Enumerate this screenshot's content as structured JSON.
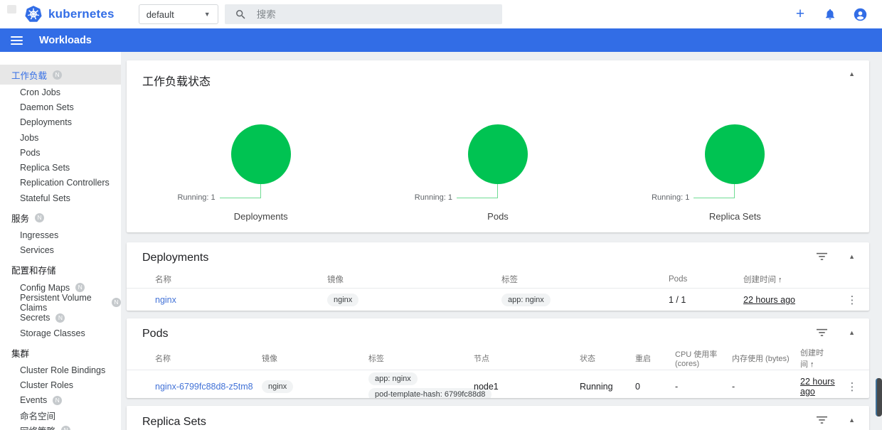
{
  "header": {
    "brand": "kubernetes",
    "namespace": "default",
    "search_placeholder": "搜索"
  },
  "toolbar": {
    "title": "Workloads"
  },
  "sidebar": {
    "groups": [
      {
        "label": "工作负载",
        "badge": "N",
        "active": true,
        "children": [
          {
            "label": "Cron Jobs"
          },
          {
            "label": "Daemon Sets"
          },
          {
            "label": "Deployments"
          },
          {
            "label": "Jobs"
          },
          {
            "label": "Pods"
          },
          {
            "label": "Replica Sets"
          },
          {
            "label": "Replication Controllers"
          },
          {
            "label": "Stateful Sets"
          }
        ]
      },
      {
        "label": "服务",
        "badge": "N",
        "children": [
          {
            "label": "Ingresses"
          },
          {
            "label": "Services"
          }
        ]
      },
      {
        "label": "配置和存储",
        "children": [
          {
            "label": "Config Maps",
            "badge": "N"
          },
          {
            "label": "Persistent Volume Claims",
            "badge": "N"
          },
          {
            "label": "Secrets",
            "badge": "N"
          },
          {
            "label": "Storage Classes"
          }
        ]
      },
      {
        "label": "集群",
        "children": [
          {
            "label": "Cluster Role Bindings"
          },
          {
            "label": "Cluster Roles"
          },
          {
            "label": "Events",
            "badge": "N"
          },
          {
            "label": "命名空间"
          },
          {
            "label": "网络策略",
            "badge": "N"
          }
        ]
      }
    ]
  },
  "status_card": {
    "title": "工作负载状态",
    "charts": [
      {
        "label": "Deployments",
        "annotation": "Running: 1"
      },
      {
        "label": "Pods",
        "annotation": "Running: 1"
      },
      {
        "label": "Replica Sets",
        "annotation": "Running: 1"
      }
    ]
  },
  "chart_data": [
    {
      "type": "pie",
      "title": "Deployments",
      "slices": [
        {
          "label": "Running",
          "value": 1,
          "color": "#00c352"
        }
      ]
    },
    {
      "type": "pie",
      "title": "Pods",
      "slices": [
        {
          "label": "Running",
          "value": 1,
          "color": "#00c352"
        }
      ]
    },
    {
      "type": "pie",
      "title": "Replica Sets",
      "slices": [
        {
          "label": "Running",
          "value": 1,
          "color": "#00c352"
        }
      ]
    }
  ],
  "deployments_card": {
    "title": "Deployments",
    "columns": [
      "名称",
      "镜像",
      "标签",
      "Pods",
      "创建时间"
    ],
    "sort_arrow": "↑",
    "rows": [
      {
        "status": "ok",
        "name": "nginx",
        "image": "nginx",
        "labels": [
          "app: nginx"
        ],
        "pods": "1 / 1",
        "created": "22 hours ago"
      }
    ]
  },
  "pods_card": {
    "title": "Pods",
    "columns": [
      "名称",
      "镜像",
      "标签",
      "节点",
      "状态",
      "重启",
      "CPU 使用率 (cores)",
      "内存使用 (bytes)",
      "创建时间"
    ],
    "sort_arrow": "↑",
    "rows": [
      {
        "status": "ok",
        "name": "nginx-6799fc88d8-z5tm8",
        "image": "nginx",
        "labels": [
          "app: nginx",
          "pod-template-hash: 6799fc88d8"
        ],
        "node": "node1",
        "state": "Running",
        "restarts": "0",
        "cpu": "-",
        "memory": "-",
        "created": "22 hours ago"
      }
    ]
  },
  "replicasets_card": {
    "title": "Replica Sets"
  },
  "colors": {
    "brand": "#326de6",
    "ok_green": "#00c352",
    "status_dot": "#158915",
    "link": "#4272d7"
  }
}
